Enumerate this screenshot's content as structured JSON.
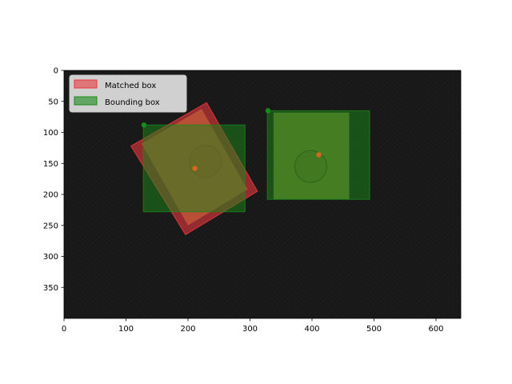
{
  "chart_data": {
    "type": "image-overlay",
    "title": "",
    "xlabel": "",
    "ylabel": "",
    "xlim": [
      0,
      640
    ],
    "ylim": [
      400,
      0
    ],
    "x_ticks": [
      0,
      100,
      200,
      300,
      400,
      500,
      600
    ],
    "y_ticks": [
      0,
      50,
      100,
      150,
      200,
      250,
      300,
      350
    ],
    "legend": {
      "position": "upper-left",
      "entries": [
        {
          "label": "Matched box",
          "color": "#e8393d"
        },
        {
          "label": "Bounding box",
          "color": "#1a8a1a"
        }
      ]
    },
    "matched_boxes": [
      {
        "corners": [
          [
            108,
            122
          ],
          [
            196,
            265
          ],
          [
            312,
            195
          ],
          [
            230,
            52
          ]
        ],
        "color": "#e8393d"
      }
    ],
    "bounding_boxes": [
      {
        "x": [
          128,
          292
        ],
        "y": [
          88,
          228
        ],
        "color": "#1a8a1a"
      },
      {
        "x": [
          328,
          493
        ],
        "y": [
          65,
          208
        ],
        "color": "#1a8a1a"
      }
    ],
    "points": [
      {
        "x": 129,
        "y": 88,
        "color": "#1a8a1a"
      },
      {
        "x": 329,
        "y": 65,
        "color": "#1a8a1a"
      },
      {
        "x": 211,
        "y": 158,
        "color": "#d2691e"
      },
      {
        "x": 411,
        "y": 136,
        "color": "#d2691e"
      }
    ],
    "background": "#1a1a1a"
  }
}
